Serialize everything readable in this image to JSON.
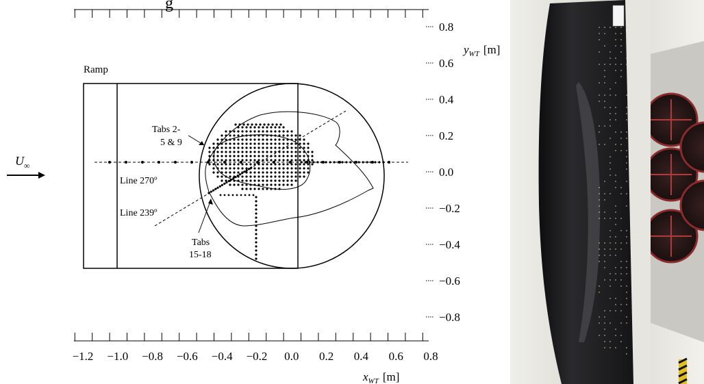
{
  "figure": {
    "top_clipped_text": "g",
    "ramp_label": "Ramp",
    "freestream_label": "U",
    "freestream_subscript": "∞",
    "annotations": {
      "tabs_upper_line1": "Tabs  2-",
      "tabs_upper_line2": "5 & 9",
      "line_270": "Line 270º",
      "line_239": "Line 239º",
      "tabs_lower_line1": "Tabs",
      "tabs_lower_line2": "15-18"
    },
    "x_axis": {
      "label_main": "x",
      "label_sub": "WT",
      "label_unit": "[m]",
      "tick_labels": [
        "−1.2",
        "−1.0",
        "−0.8",
        "−0.6",
        "−0.4",
        "−0.2",
        "0.0",
        "0.2",
        "0.4",
        "0.6",
        "0.8"
      ]
    },
    "y_axis": {
      "label_main": "y",
      "label_sub": "WT",
      "label_unit": "[m]",
      "tick_labels": [
        "0.8",
        "0.6",
        "0.4",
        "0.2",
        "0.0",
        "−0.2",
        "−0.4",
        "−0.6",
        "−0.8"
      ]
    }
  },
  "photo": {
    "description_icon": "wind-tunnel-model-photo"
  },
  "colors": {
    "ink": "#000000",
    "tunnel_wall": "#d9d9d4",
    "model_surface": "#1c1c1e",
    "fan_red": "#9b2f2f"
  }
}
